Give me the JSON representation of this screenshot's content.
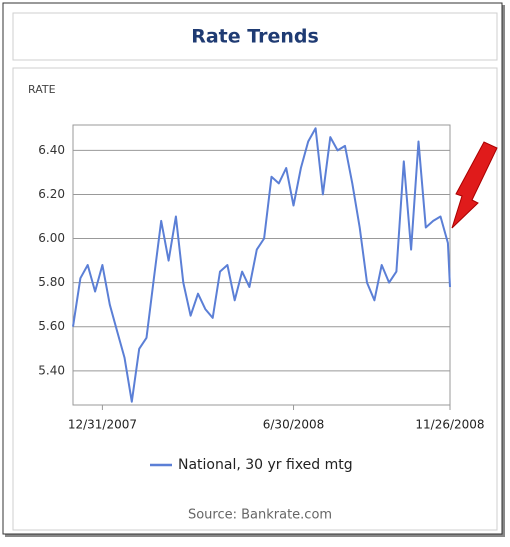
{
  "chart_data": {
    "type": "line",
    "title": "Rate Trends",
    "y_axis_label": "RATE",
    "source": "Source: Bankrate.com",
    "x": [
      "2007-12-03",
      "2007-12-10",
      "2007-12-17",
      "2007-12-24",
      "2007-12-31",
      "2008-01-07",
      "2008-01-14",
      "2008-01-21",
      "2008-01-28",
      "2008-02-04",
      "2008-02-11",
      "2008-02-18",
      "2008-02-25",
      "2008-03-03",
      "2008-03-10",
      "2008-03-17",
      "2008-03-24",
      "2008-03-31",
      "2008-04-07",
      "2008-04-14",
      "2008-04-21",
      "2008-04-28",
      "2008-05-05",
      "2008-05-12",
      "2008-05-19",
      "2008-05-26",
      "2008-06-02",
      "2008-06-09",
      "2008-06-16",
      "2008-06-23",
      "2008-06-30",
      "2008-07-07",
      "2008-07-14",
      "2008-07-21",
      "2008-07-28",
      "2008-08-04",
      "2008-08-11",
      "2008-08-18",
      "2008-08-25",
      "2008-09-01",
      "2008-09-08",
      "2008-09-15",
      "2008-09-22",
      "2008-09-29",
      "2008-10-06",
      "2008-10-13",
      "2008-10-20",
      "2008-10-27",
      "2008-11-03",
      "2008-11-10",
      "2008-11-17",
      "2008-11-24",
      "2008-11-26"
    ],
    "series": [
      {
        "name": "National, 30 yr fixed mtg",
        "color": "#5b7fd6",
        "values": [
          5.6,
          5.82,
          5.88,
          5.76,
          5.88,
          5.7,
          5.58,
          5.46,
          5.26,
          5.5,
          5.55,
          5.82,
          6.08,
          5.9,
          6.1,
          5.8,
          5.65,
          5.75,
          5.68,
          5.64,
          5.85,
          5.88,
          5.72,
          5.85,
          5.78,
          5.95,
          6.0,
          6.28,
          6.25,
          6.32,
          6.15,
          6.32,
          6.44,
          6.5,
          6.2,
          6.46,
          6.4,
          6.42,
          6.25,
          6.05,
          5.8,
          5.72,
          5.88,
          5.8,
          5.85,
          6.35,
          5.95,
          6.44,
          6.05,
          6.08,
          6.1,
          5.98,
          5.78
        ]
      }
    ],
    "xlim": [
      "2007-12-03",
      "2008-11-26"
    ],
    "xticks": [
      {
        "value": "2007-12-31",
        "label": "12/31/2007"
      },
      {
        "value": "2008-06-30",
        "label": "6/30/2008"
      },
      {
        "value": "2008-11-26",
        "label": "11/26/2008"
      }
    ],
    "ylim": [
      5.245,
      6.515
    ],
    "yticks": [
      {
        "value": 5.4,
        "label": "5.40"
      },
      {
        "value": 5.6,
        "label": "5.60"
      },
      {
        "value": 5.8,
        "label": "5.80"
      },
      {
        "value": 6,
        "label": "6.00"
      },
      {
        "value": 6.2,
        "label": "6.20"
      },
      {
        "value": 6.4,
        "label": "6.40"
      }
    ],
    "grid": true
  }
}
